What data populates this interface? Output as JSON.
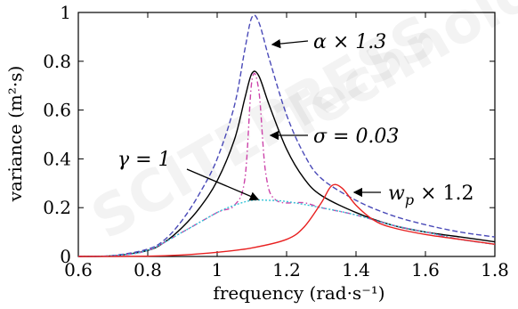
{
  "chart_data": {
    "type": "line",
    "xlabel": "frequency (rad·s⁻¹)",
    "ylabel": "variance (m²·s)",
    "xlim": [
      0.6,
      1.8
    ],
    "ylim": [
      0,
      1
    ],
    "x_ticks": [
      "0.6",
      "0.8",
      "1",
      "1.2",
      "1.4",
      "1.6",
      "1.8"
    ],
    "y_ticks": [
      "0",
      "0.2",
      "0.4",
      "0.6",
      "0.8",
      "1"
    ],
    "grid": false,
    "legend": "none",
    "series": [
      {
        "color": "#000000",
        "dash": "solid",
        "points": [
          [
            0.6,
            0
          ],
          [
            0.7,
            0.003
          ],
          [
            0.8,
            0.025
          ],
          [
            0.85,
            0.06
          ],
          [
            0.9,
            0.12
          ],
          [
            0.95,
            0.2
          ],
          [
            1.0,
            0.31
          ],
          [
            1.05,
            0.48
          ],
          [
            1.08,
            0.65
          ],
          [
            1.1,
            0.75
          ],
          [
            1.12,
            0.74
          ],
          [
            1.15,
            0.62
          ],
          [
            1.2,
            0.44
          ],
          [
            1.25,
            0.32
          ],
          [
            1.3,
            0.25
          ],
          [
            1.4,
            0.18
          ],
          [
            1.5,
            0.13
          ],
          [
            1.6,
            0.1
          ],
          [
            1.7,
            0.08
          ],
          [
            1.8,
            0.06
          ]
        ]
      },
      {
        "color": "#4a4ab8",
        "dash": "dashed",
        "points": [
          [
            0.6,
            0
          ],
          [
            0.7,
            0.004
          ],
          [
            0.8,
            0.03
          ],
          [
            0.85,
            0.07
          ],
          [
            0.9,
            0.15
          ],
          [
            0.95,
            0.26
          ],
          [
            1.0,
            0.4
          ],
          [
            1.05,
            0.62
          ],
          [
            1.08,
            0.85
          ],
          [
            1.1,
            0.98
          ],
          [
            1.12,
            0.96
          ],
          [
            1.15,
            0.81
          ],
          [
            1.2,
            0.58
          ],
          [
            1.25,
            0.42
          ],
          [
            1.3,
            0.32
          ],
          [
            1.4,
            0.23
          ],
          [
            1.5,
            0.17
          ],
          [
            1.6,
            0.13
          ],
          [
            1.7,
            0.1
          ],
          [
            1.8,
            0.08
          ]
        ]
      },
      {
        "color": "#cc44aa",
        "dash": "dashdot",
        "points": [
          [
            0.6,
            0
          ],
          [
            0.7,
            0.003
          ],
          [
            0.8,
            0.025
          ],
          [
            0.9,
            0.1
          ],
          [
            1.0,
            0.18
          ],
          [
            1.05,
            0.21
          ],
          [
            1.08,
            0.32
          ],
          [
            1.1,
            0.72
          ],
          [
            1.12,
            0.68
          ],
          [
            1.14,
            0.34
          ],
          [
            1.17,
            0.23
          ],
          [
            1.25,
            0.22
          ],
          [
            1.3,
            0.2
          ],
          [
            1.4,
            0.17
          ],
          [
            1.5,
            0.13
          ],
          [
            1.6,
            0.1
          ],
          [
            1.7,
            0.07
          ],
          [
            1.8,
            0.05
          ]
        ]
      },
      {
        "color": "#33c4d8",
        "dash": "dotted",
        "points": [
          [
            0.6,
            0
          ],
          [
            0.7,
            0.003
          ],
          [
            0.8,
            0.025
          ],
          [
            0.9,
            0.1
          ],
          [
            1.0,
            0.18
          ],
          [
            1.05,
            0.21
          ],
          [
            1.1,
            0.23
          ],
          [
            1.15,
            0.23
          ],
          [
            1.2,
            0.225
          ],
          [
            1.3,
            0.2
          ],
          [
            1.4,
            0.17
          ],
          [
            1.5,
            0.13
          ],
          [
            1.6,
            0.1
          ],
          [
            1.7,
            0.07
          ],
          [
            1.8,
            0.05
          ]
        ]
      },
      {
        "color": "#e82020",
        "dash": "solid",
        "points": [
          [
            0.6,
            0
          ],
          [
            0.8,
            0.001
          ],
          [
            0.9,
            0.006
          ],
          [
            1.0,
            0.017
          ],
          [
            1.1,
            0.035
          ],
          [
            1.2,
            0.07
          ],
          [
            1.25,
            0.12
          ],
          [
            1.3,
            0.22
          ],
          [
            1.33,
            0.29
          ],
          [
            1.36,
            0.28
          ],
          [
            1.4,
            0.21
          ],
          [
            1.45,
            0.15
          ],
          [
            1.5,
            0.12
          ],
          [
            1.6,
            0.09
          ],
          [
            1.7,
            0.07
          ],
          [
            1.8,
            0.05
          ]
        ]
      }
    ],
    "annotations": [
      {
        "text": "α × 1.3",
        "series_index": 1
      },
      {
        "text": "σ = 0.03",
        "series_index": 2
      },
      {
        "text": "γ = 1",
        "series_index": 3
      },
      {
        "text_main": "w",
        "text_sub": "p",
        "text_rest": " × 1.2",
        "series_index": 4
      }
    ]
  }
}
